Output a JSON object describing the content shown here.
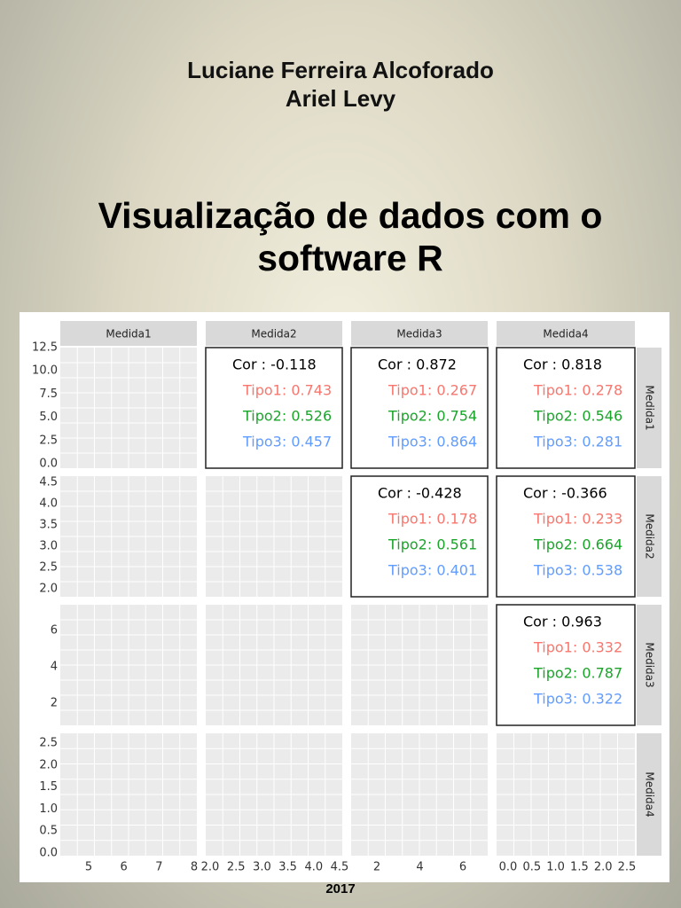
{
  "authors": [
    "Luciane Ferreira Alcoforado",
    "Ariel Levy"
  ],
  "title": [
    "Visualização de dados com o",
    "software R"
  ],
  "figure": {
    "column_labels": [
      "Medida1",
      "Medida2",
      "Medida3",
      "Medida4"
    ],
    "row_labels": [
      "Medida1",
      "Medida2",
      "Medida3",
      "Medida4"
    ],
    "y_ticks": [
      [
        "12.5",
        "10.0",
        "7.5",
        "5.0",
        "2.5",
        "0.0"
      ],
      [
        "4.5",
        "4.0",
        "3.5",
        "3.0",
        "2.5",
        "2.0"
      ],
      [
        "6",
        "4",
        "2"
      ],
      [
        "2.5",
        "2.0",
        "1.5",
        "1.0",
        "0.5",
        "0.0"
      ]
    ],
    "x_ticks": [
      [
        "5",
        "6",
        "7",
        "8"
      ],
      [
        "2.0",
        "2.5",
        "3.0",
        "3.5",
        "4.0",
        "4.5"
      ],
      [
        "2",
        "4",
        "6"
      ],
      [
        "0.0",
        "0.5",
        "1.0",
        "1.5",
        "2.0",
        "2.5"
      ]
    ],
    "correlations": [
      {
        "row": 0,
        "col": 1,
        "lines": [
          "Cor : -0.118",
          "Tipo1: 0.743",
          "Tipo2: 0.526",
          "Tipo3: 0.457"
        ]
      },
      {
        "row": 0,
        "col": 2,
        "lines": [
          "Cor : 0.872",
          "Tipo1: 0.267",
          "Tipo2: 0.754",
          "Tipo3: 0.864"
        ]
      },
      {
        "row": 0,
        "col": 3,
        "lines": [
          "Cor : 0.818",
          "Tipo1: 0.278",
          "Tipo2: 0.546",
          "Tipo3: 0.281"
        ]
      },
      {
        "row": 1,
        "col": 2,
        "lines": [
          "Cor : -0.428",
          "Tipo1: 0.178",
          "Tipo2: 0.561",
          "Tipo3: 0.401"
        ]
      },
      {
        "row": 1,
        "col": 3,
        "lines": [
          "Cor : -0.366",
          "Tipo1: 0.233",
          "Tipo2: 0.664",
          "Tipo3: 0.538"
        ]
      },
      {
        "row": 2,
        "col": 3,
        "lines": [
          "Cor : 0.963",
          "Tipo1: 0.332",
          "Tipo2: 0.787",
          "Tipo3: 0.322"
        ]
      }
    ]
  },
  "year": "2017"
}
